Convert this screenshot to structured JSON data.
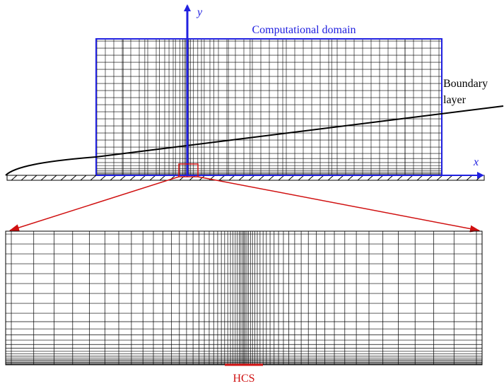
{
  "axes": {
    "y": "y",
    "x": "x"
  },
  "labels": {
    "domain": "Computational domain",
    "boundary_layer": [
      "Boundary",
      "layer"
    ],
    "hcs": "HCS"
  }
}
